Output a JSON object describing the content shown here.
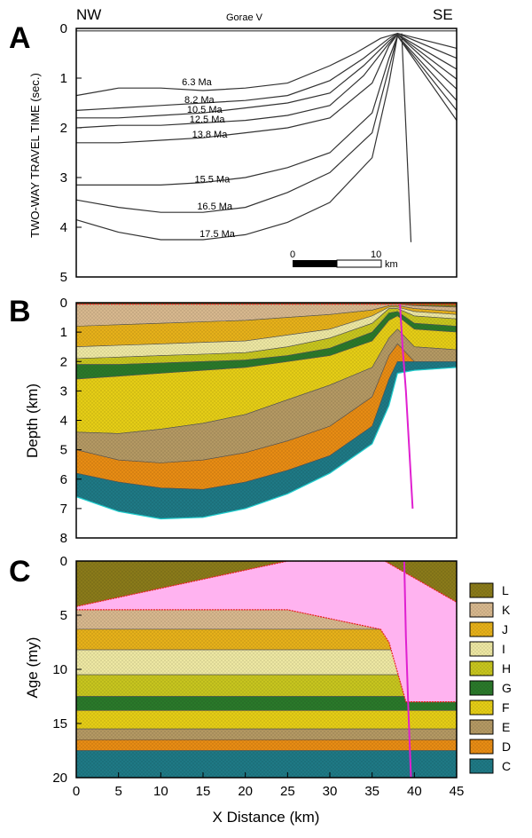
{
  "chart_data": [
    {
      "panel": "A",
      "type": "line",
      "title": "A",
      "ylabel": "TWO-WAY TRAVEL TIME (sec.)",
      "ylim": [
        0,
        5
      ],
      "yticks": [
        "0",
        "1",
        "2",
        "3",
        "4",
        "5"
      ],
      "left_label": "NW",
      "right_label": "SE",
      "well_label": "Gorae V",
      "scale_bar": {
        "labels": [
          "0",
          "10",
          "km"
        ]
      },
      "horizons": [
        {
          "name": "6.3 Ma",
          "x": [
            0,
            5,
            10,
            15,
            20,
            25,
            30,
            33,
            36,
            38
          ],
          "y": [
            1.35,
            1.2,
            1.2,
            1.25,
            1.2,
            1.1,
            0.75,
            0.5,
            0.2,
            0.1
          ]
        },
        {
          "name": "8.2 Ma",
          "x": [
            0,
            5,
            10,
            15,
            20,
            25,
            30,
            34,
            37,
            38
          ],
          "y": [
            1.65,
            1.6,
            1.55,
            1.5,
            1.45,
            1.35,
            1.05,
            0.6,
            0.2,
            0.1
          ]
        },
        {
          "name": "10.5 Ma",
          "x": [
            0,
            5,
            10,
            15,
            20,
            25,
            30,
            34,
            37,
            38
          ],
          "y": [
            1.8,
            1.8,
            1.75,
            1.7,
            1.6,
            1.5,
            1.3,
            0.75,
            0.25,
            0.12
          ]
        },
        {
          "name": "12.5 Ma",
          "x": [
            0,
            5,
            10,
            15,
            20,
            25,
            30,
            34,
            37,
            38
          ],
          "y": [
            2.0,
            1.95,
            1.95,
            1.9,
            1.85,
            1.75,
            1.55,
            0.95,
            0.3,
            0.12
          ]
        },
        {
          "name": "13.8 Ma",
          "x": [
            0,
            5,
            10,
            15,
            20,
            25,
            30,
            35,
            37,
            38
          ],
          "y": [
            2.3,
            2.3,
            2.25,
            2.2,
            2.1,
            2.0,
            1.8,
            1.1,
            0.35,
            0.12
          ]
        },
        {
          "name": "15.5 Ma",
          "x": [
            0,
            5,
            10,
            15,
            20,
            25,
            30,
            35,
            37,
            38
          ],
          "y": [
            3.15,
            3.15,
            3.15,
            3.1,
            3.0,
            2.8,
            2.5,
            1.7,
            0.6,
            0.15
          ]
        },
        {
          "name": "16.5 Ma",
          "x": [
            0,
            5,
            10,
            15,
            20,
            25,
            30,
            35,
            37,
            38
          ],
          "y": [
            3.45,
            3.6,
            3.7,
            3.7,
            3.6,
            3.3,
            2.9,
            2.1,
            0.8,
            0.15
          ]
        },
        {
          "name": "17.5 Ma",
          "x": [
            0,
            5,
            10,
            15,
            20,
            25,
            30,
            35,
            37,
            38
          ],
          "y": [
            3.85,
            4.1,
            4.25,
            4.25,
            4.15,
            3.9,
            3.5,
            2.6,
            1.1,
            0.15
          ]
        }
      ]
    },
    {
      "panel": "B",
      "type": "area",
      "title": "B",
      "ylabel": "Depth (km)",
      "ylim": [
        0,
        8
      ],
      "yticks": [
        "0",
        "1",
        "2",
        "3",
        "4",
        "5",
        "6",
        "7",
        "8"
      ],
      "x": [
        0,
        5,
        10,
        15,
        20,
        25,
        30,
        35,
        37,
        38,
        40,
        45
      ],
      "layer_bottoms": {
        "L": [
          0.05,
          0.05,
          0.05,
          0.05,
          0.05,
          0.05,
          0.05,
          0.05,
          0.05,
          0.05,
          0.1,
          0.15
        ],
        "K": [
          0.8,
          0.75,
          0.7,
          0.65,
          0.6,
          0.5,
          0.4,
          0.25,
          0.1,
          0.1,
          0.2,
          0.3
        ],
        "J": [
          1.5,
          1.45,
          1.4,
          1.35,
          1.3,
          1.1,
          0.9,
          0.45,
          0.15,
          0.15,
          0.3,
          0.4
        ],
        "I": [
          1.9,
          1.85,
          1.8,
          1.75,
          1.7,
          1.5,
          1.2,
          0.7,
          0.2,
          0.2,
          0.45,
          0.55
        ],
        "H": [
          2.1,
          2.1,
          2.05,
          2.0,
          1.95,
          1.8,
          1.55,
          1.0,
          0.35,
          0.3,
          0.7,
          0.8
        ],
        "G": [
          2.6,
          2.5,
          2.4,
          2.3,
          2.2,
          2.0,
          1.8,
          1.3,
          0.6,
          0.45,
          0.9,
          1.0
        ],
        "F": [
          4.4,
          4.45,
          4.3,
          4.1,
          3.8,
          3.3,
          2.8,
          2.2,
          1.2,
          0.9,
          1.5,
          1.6
        ],
        "E": [
          5.0,
          5.35,
          5.45,
          5.35,
          5.1,
          4.7,
          4.2,
          3.2,
          1.8,
          1.4,
          2.0,
          2.0
        ],
        "D": [
          5.8,
          6.1,
          6.3,
          6.35,
          6.1,
          5.7,
          5.2,
          4.2,
          2.6,
          2.0,
          2.0,
          2.0
        ],
        "C": [
          6.6,
          7.1,
          7.35,
          7.3,
          7.0,
          6.5,
          5.8,
          4.8,
          3.5,
          2.4,
          2.3,
          2.2
        ]
      },
      "fault_line": {
        "x": [
          38.3,
          38.6,
          39.0,
          39.4,
          39.8
        ],
        "y": [
          0.05,
          1.5,
          3.0,
          5.0,
          7.0
        ]
      }
    },
    {
      "panel": "C",
      "type": "area",
      "title": "C",
      "ylabel": "Age (my)",
      "xlabel": "X Distance (km)",
      "xlim": [
        0,
        45
      ],
      "ylim": [
        0,
        20
      ],
      "xticks": [
        "0",
        "5",
        "10",
        "15",
        "20",
        "25",
        "30",
        "35",
        "40",
        "45"
      ],
      "yticks": [
        "0",
        "5",
        "10",
        "15",
        "20"
      ],
      "age_boundaries": {
        "L": 0,
        "K": 4.3,
        "J": 6.3,
        "I": 8.2,
        "H": 10.5,
        "G": 12.5,
        "F": 13.8,
        "E": 15.5,
        "D": 16.5,
        "C": 17.5,
        "base": 20
      },
      "hiatus_region": {
        "top_x": [
          0,
          25,
          36.5,
          45
        ],
        "top_y": [
          4.2,
          0,
          0,
          3.8
        ],
        "base_x": [
          0,
          25,
          36,
          37,
          39,
          45
        ],
        "base_y": [
          4.5,
          4.5,
          6.3,
          7.5,
          13.0,
          13.0
        ]
      },
      "fault_line": {
        "x": [
          38.8,
          39.0,
          39.3,
          39.6
        ],
        "y": [
          0,
          7,
          14,
          20
        ]
      },
      "legend": [
        "L",
        "K",
        "J",
        "I",
        "H",
        "G",
        "F",
        "E",
        "D",
        "C"
      ],
      "legend_colors": {
        "L": "#8b7b1a",
        "K": "#d9b98f",
        "J": "#e8b21a",
        "I": "#efe9a4",
        "H": "#c9c71f",
        "G": "#2b7a2b",
        "F": "#e7cf16",
        "E": "#b59a64",
        "D": "#e98d14",
        "C": "#1f7a86"
      }
    }
  ],
  "colors": {
    "hiatus": "#ffb3f0",
    "fault": "#e020d0",
    "unconformity": "#e82020",
    "axis": "#000000"
  }
}
